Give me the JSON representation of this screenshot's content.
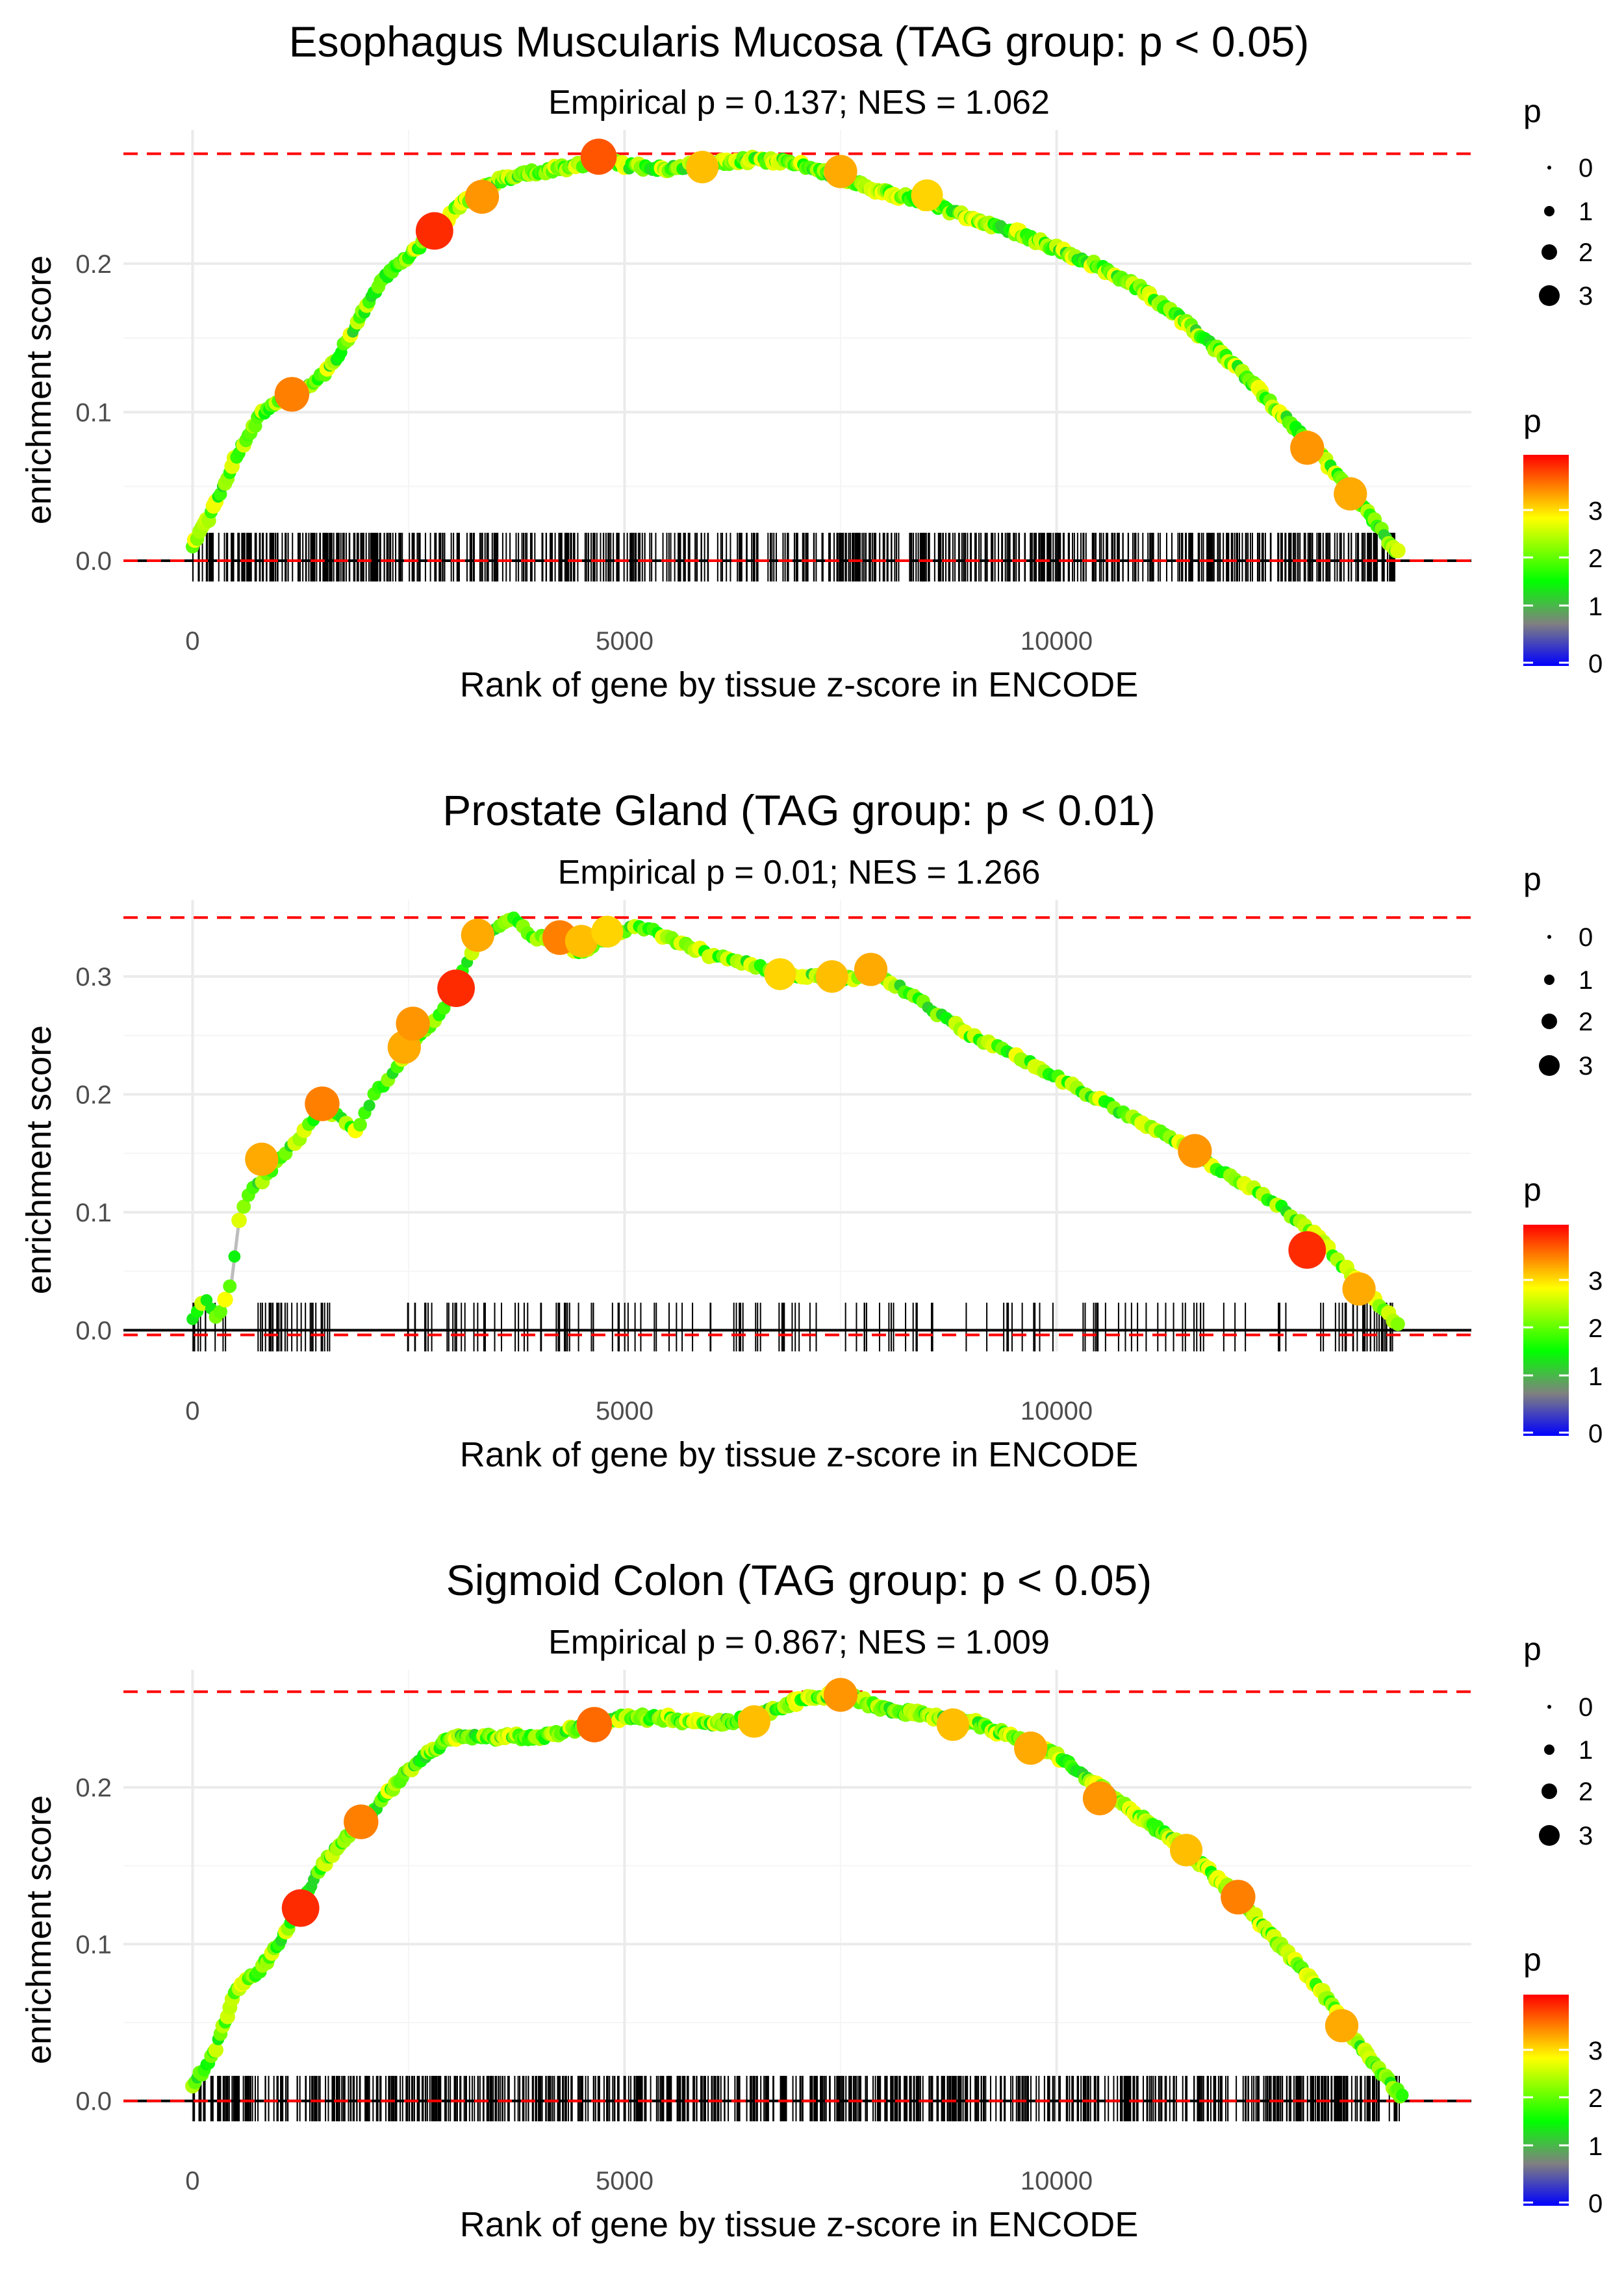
{
  "colors": {
    "threshold_line": "#ff0000",
    "curve": "#bdbdbd",
    "grid": "#ebebeb",
    "rug": "#000000",
    "gradient": [
      "#0000ff",
      "#808080",
      "#00ff00",
      "#ffff00",
      "#ff0000"
    ]
  },
  "chart_data": [
    {
      "type": "scatter",
      "title": "Esophagus Muscularis Mucosa (TAG group: p < 0.05)",
      "subtitle": "Empirical p = 0.137; NES = 1.062",
      "xlabel": "Rank of gene by tissue z-score in ENCODE",
      "ylabel": "enrichment score",
      "xlim": [
        -800,
        14800
      ],
      "ylim": [
        -0.014,
        0.29
      ],
      "x_ticks": [
        0,
        5000,
        10000
      ],
      "x_tick_labels": [
        "0",
        "5000",
        "10000"
      ],
      "y_ticks": [
        0.0,
        0.1,
        0.2
      ],
      "y_tick_labels": [
        "0.0",
        "0.1",
        "0.2"
      ],
      "max_line": 0.274,
      "min_line": 0.0,
      "n_max": 13950,
      "n_rug": 700,
      "curve_x": [
        0,
        200,
        500,
        800,
        1100,
        1300,
        1600,
        1900,
        2200,
        2500,
        2800,
        3100,
        3500,
        4000,
        4500,
        4700,
        5000,
        5500,
        6000,
        6500,
        7000,
        7500,
        8000,
        8500,
        9000,
        9500,
        10000,
        10500,
        11000,
        11500,
        12000,
        12500,
        13000,
        13500,
        13950
      ],
      "curve_y": [
        0.01,
        0.03,
        0.07,
        0.1,
        0.11,
        0.115,
        0.13,
        0.16,
        0.19,
        0.205,
        0.22,
        0.24,
        0.255,
        0.262,
        0.266,
        0.272,
        0.266,
        0.264,
        0.268,
        0.27,
        0.268,
        0.258,
        0.248,
        0.242,
        0.23,
        0.222,
        0.21,
        0.198,
        0.182,
        0.16,
        0.135,
        0.105,
        0.075,
        0.04,
        0.005
      ],
      "highlight_points": [
        {
          "x": 1150,
          "y": 0.112,
          "p": 3.4
        },
        {
          "x": 2800,
          "y": 0.222,
          "p": 3.8
        },
        {
          "x": 3350,
          "y": 0.245,
          "p": 3.3
        },
        {
          "x": 4700,
          "y": 0.272,
          "p": 3.6
        },
        {
          "x": 5900,
          "y": 0.265,
          "p": 3.1
        },
        {
          "x": 7500,
          "y": 0.262,
          "p": 3.2
        },
        {
          "x": 8500,
          "y": 0.246,
          "p": 3.0
        },
        {
          "x": 12900,
          "y": 0.076,
          "p": 3.3
        },
        {
          "x": 13400,
          "y": 0.045,
          "p": 3.2
        }
      ],
      "size_legend": {
        "title": "p",
        "labels": [
          "0",
          "1",
          "2",
          "3"
        ]
      },
      "color_legend": {
        "title": "p",
        "labels": [
          "3",
          "2",
          "1",
          "0"
        ]
      }
    },
    {
      "type": "scatter",
      "title": "Prostate Gland (TAG group: p < 0.01)",
      "subtitle": "Empirical p = 0.01; NES = 1.266",
      "xlabel": "Rank of gene by tissue z-score in ENCODE",
      "ylabel": "enrichment score",
      "xlim": [
        -800,
        14800
      ],
      "ylim": [
        -0.018,
        0.365
      ],
      "x_ticks": [
        0,
        5000,
        10000
      ],
      "x_tick_labels": [
        "0",
        "5000",
        "10000"
      ],
      "y_ticks": [
        0.0,
        0.1,
        0.2,
        0.3
      ],
      "y_tick_labels": [
        "0.0",
        "0.1",
        "0.2",
        "0.3"
      ],
      "max_line": 0.35,
      "min_line": -0.004,
      "n_max": 13950,
      "n_rug": 200,
      "curve_x": [
        0,
        150,
        300,
        450,
        550,
        700,
        850,
        1000,
        1200,
        1500,
        1700,
        1900,
        2100,
        2300,
        2500,
        2700,
        2900,
        3100,
        3300,
        3500,
        3700,
        3900,
        4200,
        4500,
        4800,
        5000,
        5200,
        5600,
        6000,
        6400,
        6800,
        7200,
        7600,
        7900,
        8400,
        9000,
        9500,
        10000,
        10500,
        11000,
        11500,
        12000,
        12500,
        13000,
        13500,
        13950
      ],
      "curve_y": [
        0.01,
        0.025,
        0.01,
        0.04,
        0.1,
        0.12,
        0.13,
        0.145,
        0.16,
        0.19,
        0.18,
        0.17,
        0.2,
        0.215,
        0.24,
        0.255,
        0.27,
        0.3,
        0.33,
        0.34,
        0.35,
        0.335,
        0.33,
        0.32,
        0.335,
        0.34,
        0.342,
        0.33,
        0.318,
        0.312,
        0.302,
        0.3,
        0.298,
        0.305,
        0.28,
        0.25,
        0.235,
        0.215,
        0.195,
        0.175,
        0.155,
        0.13,
        0.11,
        0.08,
        0.04,
        0.005
      ],
      "highlight_points": [
        {
          "x": 800,
          "y": 0.145,
          "p": 3.2
        },
        {
          "x": 1500,
          "y": 0.192,
          "p": 3.4
        },
        {
          "x": 2450,
          "y": 0.24,
          "p": 3.2
        },
        {
          "x": 2550,
          "y": 0.26,
          "p": 3.3
        },
        {
          "x": 3050,
          "y": 0.29,
          "p": 3.8
        },
        {
          "x": 3300,
          "y": 0.335,
          "p": 3.2
        },
        {
          "x": 4250,
          "y": 0.333,
          "p": 3.4
        },
        {
          "x": 4500,
          "y": 0.33,
          "p": 3.1
        },
        {
          "x": 4800,
          "y": 0.338,
          "p": 3.0
        },
        {
          "x": 6800,
          "y": 0.302,
          "p": 3.0
        },
        {
          "x": 7400,
          "y": 0.3,
          "p": 3.1
        },
        {
          "x": 7850,
          "y": 0.306,
          "p": 3.2
        },
        {
          "x": 11600,
          "y": 0.152,
          "p": 3.3
        },
        {
          "x": 12900,
          "y": 0.068,
          "p": 3.8
        },
        {
          "x": 13500,
          "y": 0.035,
          "p": 3.2
        }
      ],
      "size_legend": {
        "title": "p",
        "labels": [
          "0",
          "1",
          "2",
          "3"
        ]
      },
      "color_legend": {
        "title": "p",
        "labels": [
          "3",
          "2",
          "1",
          "0"
        ]
      }
    },
    {
      "type": "scatter",
      "title": "Sigmoid Colon (TAG group: p < 0.05)",
      "subtitle": "Empirical p = 0.867; NES = 1.009",
      "xlabel": "Rank of gene by tissue z-score in ENCODE",
      "ylabel": "enrichment score",
      "xlim": [
        -800,
        14800
      ],
      "ylim": [
        -0.013,
        0.275
      ],
      "x_ticks": [
        0,
        5000,
        10000
      ],
      "x_tick_labels": [
        "0",
        "5000",
        "10000"
      ],
      "y_ticks": [
        0.0,
        0.1,
        0.2
      ],
      "y_tick_labels": [
        "0.0",
        "0.1",
        "0.2"
      ],
      "max_line": 0.261,
      "min_line": 0.0,
      "n_max": 14000,
      "n_rug": 800,
      "curve_x": [
        0,
        250,
        500,
        800,
        1000,
        1200,
        1500,
        1800,
        2100,
        2400,
        2700,
        3000,
        3500,
        4000,
        4500,
        5000,
        5500,
        6000,
        6500,
        7000,
        7500,
        8000,
        8500,
        9000,
        9500,
        10000,
        10500,
        11000,
        11500,
        12000,
        12500,
        13000,
        13500,
        14000
      ],
      "curve_y": [
        0.01,
        0.03,
        0.07,
        0.085,
        0.1,
        0.122,
        0.15,
        0.17,
        0.185,
        0.205,
        0.22,
        0.232,
        0.232,
        0.232,
        0.238,
        0.245,
        0.244,
        0.24,
        0.245,
        0.255,
        0.26,
        0.25,
        0.246,
        0.242,
        0.232,
        0.22,
        0.2,
        0.18,
        0.16,
        0.135,
        0.105,
        0.075,
        0.035,
        0.002
      ],
      "highlight_points": [
        {
          "x": 1250,
          "y": 0.123,
          "p": 3.8
        },
        {
          "x": 1950,
          "y": 0.178,
          "p": 3.4
        },
        {
          "x": 4650,
          "y": 0.24,
          "p": 3.5
        },
        {
          "x": 6500,
          "y": 0.242,
          "p": 3.1
        },
        {
          "x": 7500,
          "y": 0.259,
          "p": 3.3
        },
        {
          "x": 8800,
          "y": 0.24,
          "p": 3.1
        },
        {
          "x": 9700,
          "y": 0.225,
          "p": 3.2
        },
        {
          "x": 10500,
          "y": 0.193,
          "p": 3.3
        },
        {
          "x": 11500,
          "y": 0.16,
          "p": 3.1
        },
        {
          "x": 12100,
          "y": 0.13,
          "p": 3.4
        },
        {
          "x": 13300,
          "y": 0.048,
          "p": 3.2
        }
      ],
      "size_legend": {
        "title": "p",
        "labels": [
          "0",
          "1",
          "2",
          "3"
        ]
      },
      "color_legend": {
        "title": "p",
        "labels": [
          "3",
          "2",
          "1",
          "0"
        ]
      }
    }
  ]
}
